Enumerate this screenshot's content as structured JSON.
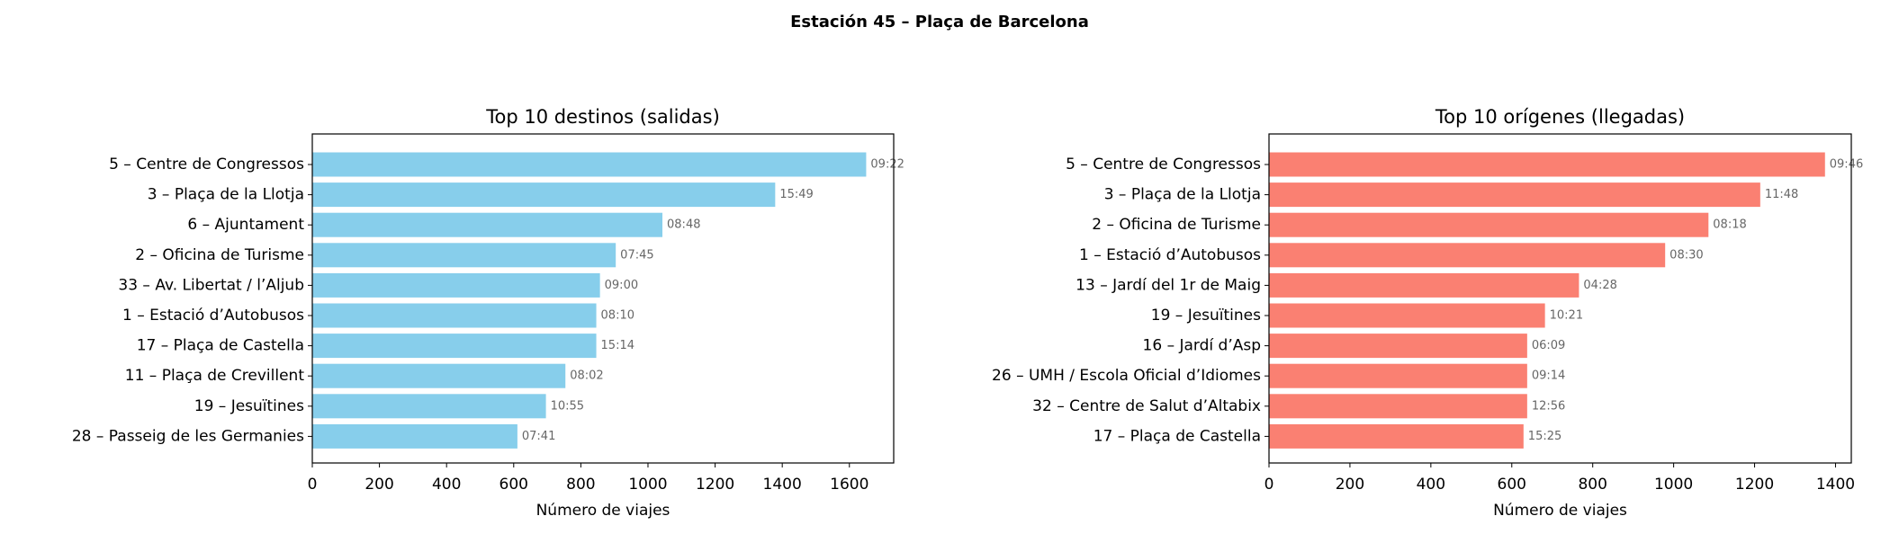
{
  "suptitle": "Estación 45 – Plaça de Barcelona",
  "chart_data": [
    {
      "type": "barh",
      "title": "Top 10 destinos (salidas)",
      "xlabel": "Número de viajes",
      "color": "#87ceeb",
      "categories": [
        "5 – Centre de Congressos",
        "3 – Plaça de la Llotja",
        "6 – Ajuntament",
        "2 – Oficina de Turisme",
        "33 – Av. Libertat / l’Aljub",
        "1 – Estació d’Autobusos",
        "17 – Plaça de Castella",
        "11 – Plaça de Crevillent",
        "19 – Jesuïtines",
        "28 – Passeig de les Germanies"
      ],
      "values": [
        1650,
        1379,
        1043,
        904,
        857,
        846,
        846,
        754,
        696,
        611
      ],
      "bar_labels": [
        "09:22",
        "15:49",
        "08:48",
        "07:45",
        "09:00",
        "08:10",
        "15:14",
        "08:02",
        "10:55",
        "07:41"
      ],
      "xlim": [
        0,
        1732
      ],
      "xticks": [
        0,
        200,
        400,
        600,
        800,
        1000,
        1200,
        1400,
        1600
      ]
    },
    {
      "type": "barh",
      "title": "Top 10 orígenes (llegadas)",
      "xlabel": "Número de viajes",
      "color": "#fa8072",
      "categories": [
        "5 – Centre de Congressos",
        "3 – Plaça de la Llotja",
        "2 – Oficina de Turisme",
        "1 – Estació d’Autobusos",
        "13 – Jardí del 1r de Maig",
        "19 – Jesuïtines",
        "16 – Jardí d’Asp",
        "26 – UMH / Escola Oficial d’Idiomes",
        "32 – Centre de Salut d’Altabix",
        "17 – Plaça de Castella"
      ],
      "values": [
        1374,
        1214,
        1086,
        979,
        766,
        682,
        638,
        638,
        638,
        629
      ],
      "bar_labels": [
        "09:46",
        "11:48",
        "08:18",
        "08:30",
        "04:28",
        "10:21",
        "06:09",
        "09:14",
        "12:56",
        "15:25"
      ],
      "xlim": [
        0,
        1439
      ],
      "xticks": [
        0,
        200,
        400,
        600,
        800,
        1000,
        1200,
        1400
      ]
    }
  ]
}
